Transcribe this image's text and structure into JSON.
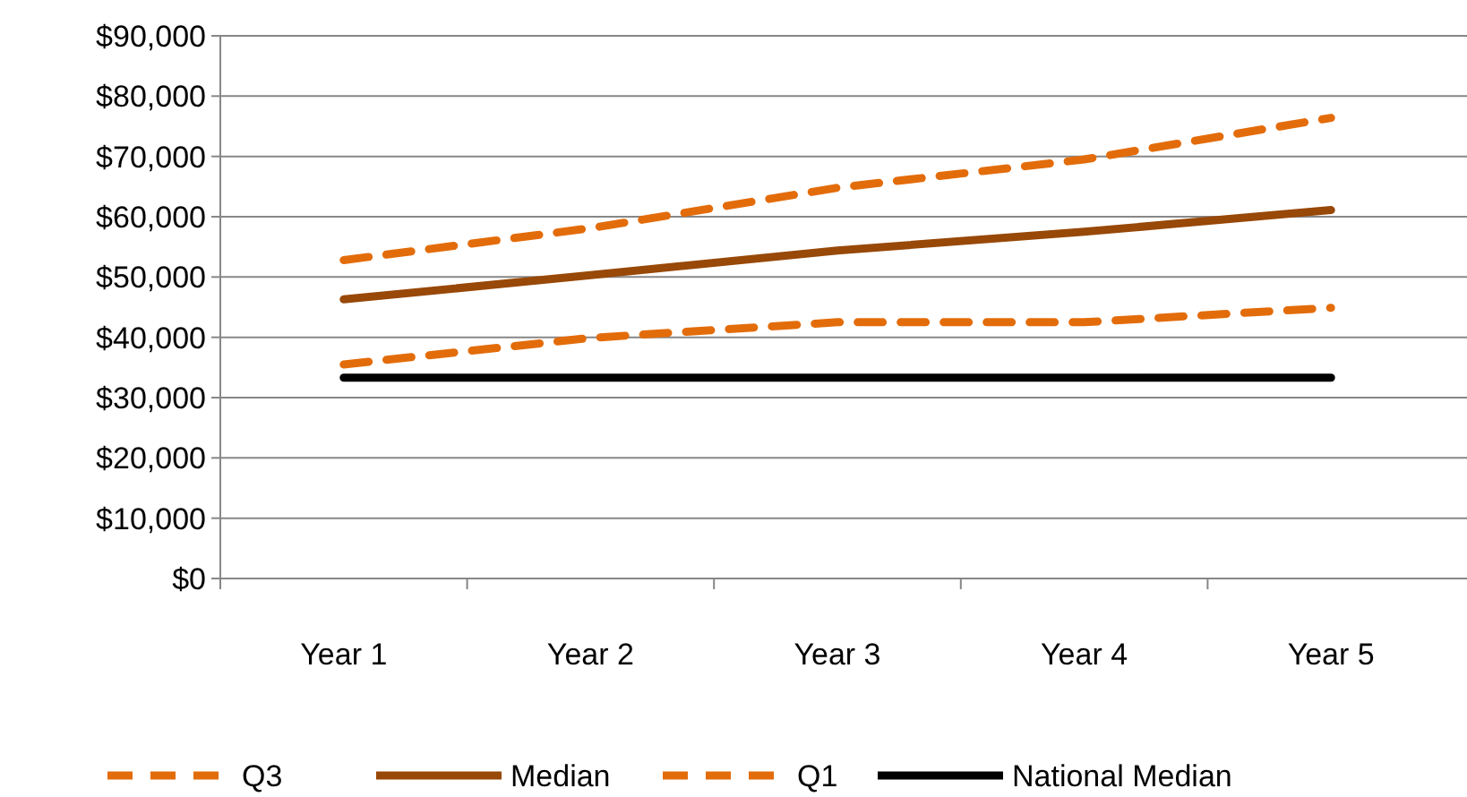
{
  "chart_data": {
    "type": "line",
    "categories": [
      "Year 1",
      "Year 2",
      "Year 3",
      "Year 4",
      "Year 5"
    ],
    "series": [
      {
        "name": "Q3",
        "color": "#e36c0a",
        "line_style": "dashed",
        "values": [
          52800,
          58100,
          64800,
          69500,
          76400
        ]
      },
      {
        "name": "Median",
        "color": "#984807",
        "line_style": "solid",
        "values": [
          46300,
          50300,
          54400,
          57500,
          61100
        ]
      },
      {
        "name": "Q1",
        "color": "#e36c0a",
        "line_style": "dashed",
        "values": [
          35500,
          39900,
          42500,
          42500,
          44900
        ]
      },
      {
        "name": "National Median",
        "color": "#000000",
        "line_style": "solid",
        "values": [
          33300,
          33300,
          33300,
          33300,
          33300
        ]
      }
    ],
    "ylim": [
      0,
      90000
    ],
    "yticks": [
      {
        "value": 0,
        "label": "$0"
      },
      {
        "value": 10000,
        "label": "$10,000"
      },
      {
        "value": 20000,
        "label": "$20,000"
      },
      {
        "value": 30000,
        "label": "$30,000"
      },
      {
        "value": 40000,
        "label": "$40,000"
      },
      {
        "value": 50000,
        "label": "$50,000"
      },
      {
        "value": 60000,
        "label": "$60,000"
      },
      {
        "value": 70000,
        "label": "$70,000"
      },
      {
        "value": 80000,
        "label": "$80,000"
      },
      {
        "value": 90000,
        "label": "$90,000"
      }
    ],
    "grid": "y",
    "legend": "bottom",
    "marker": "none"
  }
}
